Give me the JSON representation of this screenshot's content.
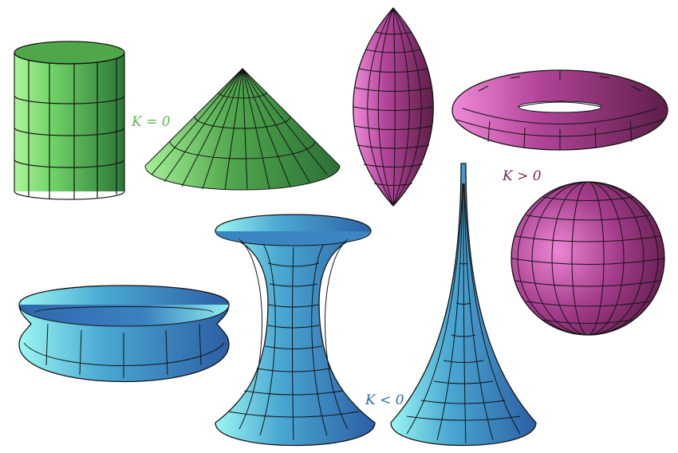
{
  "labels": {
    "zero": "K = 0",
    "positive": "K > 0",
    "negative": "K < 0"
  },
  "colors": {
    "zero": "#63b55a",
    "positive": "#7a2a5e",
    "negative": "#2e6e9e",
    "green_light": "#9cf08c",
    "green_dark": "#2e7a3a",
    "pink_light": "#ea7ad2",
    "pink_dark": "#6a2250",
    "blue_light": "#8ff3f0",
    "blue_dark": "#2f62a6",
    "mesh": "#141414"
  },
  "groups": [
    {
      "curvature": "zero",
      "surfaces": [
        "cylinder",
        "cone"
      ]
    },
    {
      "curvature": "positive",
      "surfaces": [
        "spindle",
        "torus",
        "sphere"
      ]
    },
    {
      "curvature": "negative",
      "surfaces": [
        "ring",
        "hyperboloid",
        "pseudosphere"
      ]
    }
  ]
}
